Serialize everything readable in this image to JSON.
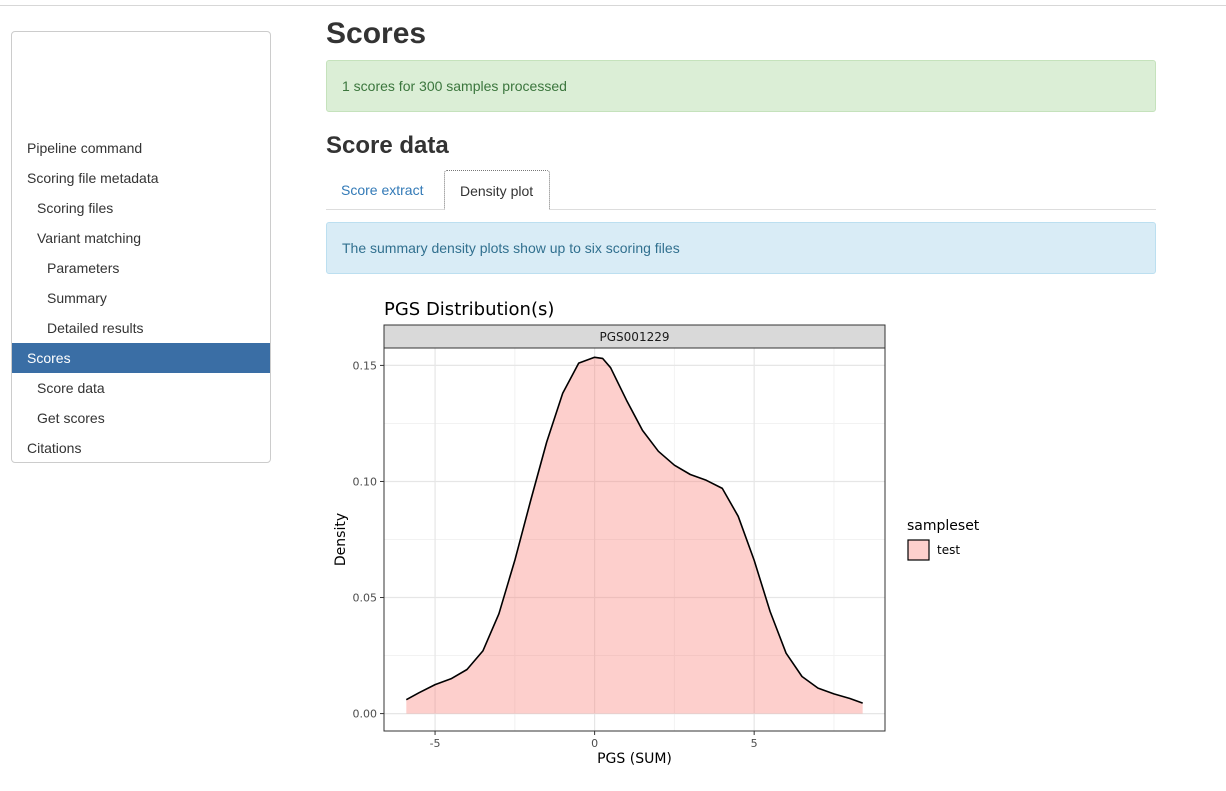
{
  "sidebar": {
    "items": [
      {
        "label": "Pipeline command",
        "level": 1,
        "active": false
      },
      {
        "label": "Scoring file metadata",
        "level": 1,
        "active": false
      },
      {
        "label": "Scoring files",
        "level": 2,
        "active": false
      },
      {
        "label": "Variant matching",
        "level": 2,
        "active": false
      },
      {
        "label": "Parameters",
        "level": 3,
        "active": false
      },
      {
        "label": "Summary",
        "level": 3,
        "active": false
      },
      {
        "label": "Detailed results",
        "level": 3,
        "active": false
      },
      {
        "label": "Scores",
        "level": 1,
        "active": true
      },
      {
        "label": "Score data",
        "level": 2,
        "active": false
      },
      {
        "label": "Get scores",
        "level": 2,
        "active": false
      },
      {
        "label": "Citations",
        "level": 1,
        "active": false
      }
    ]
  },
  "main": {
    "title": "Scores",
    "success_alert": "1 scores for 300 samples processed",
    "section_title": "Score data",
    "tabs": [
      {
        "label": "Score extract",
        "active": false
      },
      {
        "label": "Density plot",
        "active": true
      }
    ],
    "info_alert": "The summary density plots show up to six scoring files"
  },
  "colors": {
    "active_nav": "#3a6ea5",
    "link": "#337ab7",
    "success_bg": "#dbeed6",
    "info_bg": "#d9ecf6",
    "density_fill": "#f8766d"
  },
  "chart_data": {
    "type": "area",
    "title": "PGS Distribution(s)",
    "facet_label": "PGS001229",
    "xlabel": "PGS (SUM)",
    "ylabel": "Density",
    "xlim": [
      -6.6,
      9.1
    ],
    "ylim": [
      -0.0075,
      0.1575
    ],
    "xticks": [
      -5,
      0,
      5
    ],
    "yticks": [
      0.0,
      0.05,
      0.1,
      0.15
    ],
    "xtick_labels": [
      "-5",
      "0",
      "5"
    ],
    "ytick_labels": [
      "0.00",
      "0.05",
      "0.10",
      "0.15"
    ],
    "grid": true,
    "legend": {
      "title": "sampleset",
      "position": "right",
      "entries": [
        "test"
      ]
    },
    "series": [
      {
        "name": "test",
        "x": [
          -5.9,
          -5.5,
          -5.0,
          -4.5,
          -4.0,
          -3.5,
          -3.0,
          -2.5,
          -2.0,
          -1.5,
          -1.0,
          -0.5,
          0.0,
          0.25,
          0.5,
          1.0,
          1.5,
          2.0,
          2.5,
          3.0,
          3.5,
          4.0,
          4.5,
          5.0,
          5.5,
          6.0,
          6.5,
          7.0,
          7.5,
          8.0,
          8.4
        ],
        "y": [
          0.006,
          0.009,
          0.0125,
          0.015,
          0.019,
          0.027,
          0.043,
          0.066,
          0.092,
          0.117,
          0.138,
          0.151,
          0.1535,
          0.153,
          0.149,
          0.135,
          0.122,
          0.113,
          0.107,
          0.103,
          0.1005,
          0.097,
          0.085,
          0.066,
          0.044,
          0.026,
          0.016,
          0.011,
          0.0085,
          0.0065,
          0.0045
        ]
      }
    ]
  }
}
